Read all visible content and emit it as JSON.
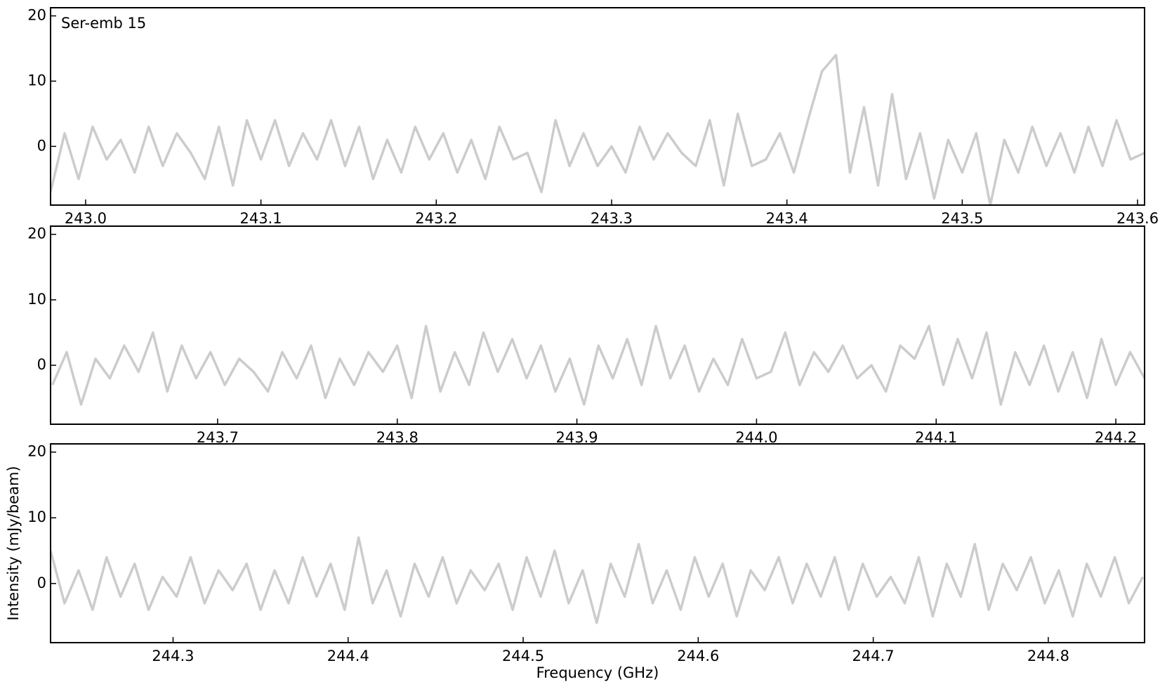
{
  "chart_data": [
    {
      "type": "line",
      "annotation": "Ser-emb 15",
      "color": "#cccccc",
      "xlim": [
        242.98,
        243.604
      ],
      "ylim": [
        -9,
        21.25
      ],
      "xticks": [
        {
          "value": 243.0,
          "label": "243.0"
        },
        243.1,
        243.2,
        243.3,
        243.4,
        243.5,
        243.6
      ],
      "yticks": [
        0,
        10,
        20
      ],
      "x": [
        242.98,
        242.988,
        242.996,
        243.004,
        243.012,
        243.02,
        243.028,
        243.036,
        243.044,
        243.052,
        243.06,
        243.068,
        243.076,
        243.084,
        243.092,
        243.1,
        243.108,
        243.116,
        243.124,
        243.132,
        243.14,
        243.148,
        243.156,
        243.164,
        243.172,
        243.18,
        243.188,
        243.196,
        243.204,
        243.212,
        243.22,
        243.228,
        243.236,
        243.244,
        243.252,
        243.26,
        243.268,
        243.276,
        243.284,
        243.292,
        243.3,
        243.308,
        243.316,
        243.324,
        243.332,
        243.34,
        243.348,
        243.356,
        243.364,
        243.372,
        243.38,
        243.388,
        243.396,
        243.404,
        243.412,
        243.42,
        243.428,
        243.436,
        243.444,
        243.452,
        243.46,
        243.468,
        243.476,
        243.484,
        243.492,
        243.5,
        243.508,
        243.516,
        243.524,
        243.532,
        243.54,
        243.548,
        243.556,
        243.564,
        243.572,
        243.58,
        243.588,
        243.596,
        243.604
      ],
      "values": [
        -7,
        2,
        -5,
        3,
        -2,
        1,
        -4,
        3,
        -3,
        2,
        -1,
        -5,
        3,
        -6,
        4,
        -2,
        4,
        -3,
        2,
        -2,
        4,
        -3,
        3,
        -5,
        1,
        -4,
        3,
        -2,
        2,
        -4,
        1,
        -5,
        3,
        -2,
        -1,
        -7,
        4,
        -3,
        2,
        -3,
        0,
        -4,
        3,
        -2,
        2,
        -1,
        -3,
        4,
        -6,
        5,
        -3,
        -2,
        2,
        -4,
        4,
        11.5,
        14,
        -4,
        6,
        -6,
        8,
        -5,
        2,
        -8,
        1,
        -4,
        2,
        -9,
        1,
        -4,
        3,
        -3,
        2,
        -4,
        3,
        -3,
        4,
        -2,
        -1
      ]
    },
    {
      "type": "line",
      "color": "#cccccc",
      "xlim": [
        243.607,
        244.216
      ],
      "ylim": [
        -9,
        21.25
      ],
      "xticks": [
        243.7,
        243.8,
        243.9,
        {
          "value": 244.0,
          "label": "244.0"
        },
        244.1,
        244.2
      ],
      "yticks": [
        0,
        10,
        20
      ],
      "x": [
        243.608,
        243.616,
        243.624,
        243.632,
        243.64,
        243.648,
        243.656,
        243.664,
        243.672,
        243.68,
        243.688,
        243.696,
        243.704,
        243.712,
        243.72,
        243.728,
        243.736,
        243.744,
        243.752,
        243.76,
        243.768,
        243.776,
        243.784,
        243.792,
        243.8,
        243.808,
        243.816,
        243.824,
        243.832,
        243.84,
        243.848,
        243.856,
        243.864,
        243.872,
        243.88,
        243.888,
        243.896,
        243.904,
        243.912,
        243.92,
        243.928,
        243.936,
        243.944,
        243.952,
        243.96,
        243.968,
        243.976,
        243.984,
        243.992,
        244.0,
        244.008,
        244.016,
        244.024,
        244.032,
        244.04,
        244.048,
        244.056,
        244.064,
        244.072,
        244.08,
        244.088,
        244.096,
        244.104,
        244.112,
        244.12,
        244.128,
        244.136,
        244.144,
        244.152,
        244.16,
        244.168,
        244.176,
        244.184,
        244.192,
        244.2,
        244.208,
        244.216
      ],
      "values": [
        -3,
        2,
        -6,
        1,
        -2,
        3,
        -1,
        5,
        -4,
        3,
        -2,
        2,
        -3,
        1,
        -1,
        -4,
        2,
        -2,
        3,
        -5,
        1,
        -3,
        2,
        -1,
        3,
        -5,
        6,
        -4,
        2,
        -3,
        5,
        -1,
        4,
        -2,
        3,
        -4,
        1,
        -6,
        3,
        -2,
        4,
        -3,
        6,
        -2,
        3,
        -4,
        1,
        -3,
        4,
        -2,
        -1,
        5,
        -3,
        2,
        -1,
        3,
        -2,
        0,
        -4,
        3,
        1,
        6,
        -3,
        4,
        -2,
        5,
        -6,
        2,
        -3,
        3,
        -4,
        2,
        -5,
        4,
        -3,
        2,
        -2
      ]
    },
    {
      "type": "line",
      "color": "#cccccc",
      "xlim": [
        244.23,
        244.855
      ],
      "ylim": [
        -9,
        21.25
      ],
      "xticks": [
        244.3,
        244.4,
        244.5,
        244.6,
        244.7,
        244.8
      ],
      "yticks": [
        0,
        10,
        20
      ],
      "xlabel": "Frequency (GHz)",
      "ylabel": "Intensity (mJy/beam)",
      "x": [
        244.23,
        244.238,
        244.246,
        244.254,
        244.262,
        244.27,
        244.278,
        244.286,
        244.294,
        244.302,
        244.31,
        244.318,
        244.326,
        244.334,
        244.342,
        244.35,
        244.358,
        244.366,
        244.374,
        244.382,
        244.39,
        244.398,
        244.406,
        244.414,
        244.422,
        244.43,
        244.438,
        244.446,
        244.454,
        244.462,
        244.47,
        244.478,
        244.486,
        244.494,
        244.502,
        244.51,
        244.518,
        244.526,
        244.534,
        244.542,
        244.55,
        244.558,
        244.566,
        244.574,
        244.582,
        244.59,
        244.598,
        244.606,
        244.614,
        244.622,
        244.63,
        244.638,
        244.646,
        244.654,
        244.662,
        244.67,
        244.678,
        244.686,
        244.694,
        244.702,
        244.71,
        244.718,
        244.726,
        244.734,
        244.742,
        244.75,
        244.758,
        244.766,
        244.774,
        244.782,
        244.79,
        244.798,
        244.806,
        244.814,
        244.822,
        244.83,
        244.838,
        244.846,
        244.854
      ],
      "values": [
        5,
        -3,
        2,
        -4,
        4,
        -2,
        3,
        -4,
        1,
        -2,
        4,
        -3,
        2,
        -1,
        3,
        -4,
        2,
        -3,
        4,
        -2,
        3,
        -4,
        7,
        -3,
        2,
        -5,
        3,
        -2,
        4,
        -3,
        2,
        -1,
        3,
        -4,
        4,
        -2,
        5,
        -3,
        2,
        -6,
        3,
        -2,
        6,
        -3,
        2,
        -4,
        4,
        -2,
        3,
        -5,
        2,
        -1,
        4,
        -3,
        3,
        -2,
        4,
        -4,
        3,
        -2,
        1,
        -3,
        4,
        -5,
        3,
        -2,
        6,
        -4,
        3,
        -1,
        4,
        -3,
        2,
        -5,
        3,
        -2,
        4,
        -3,
        1
      ]
    }
  ]
}
